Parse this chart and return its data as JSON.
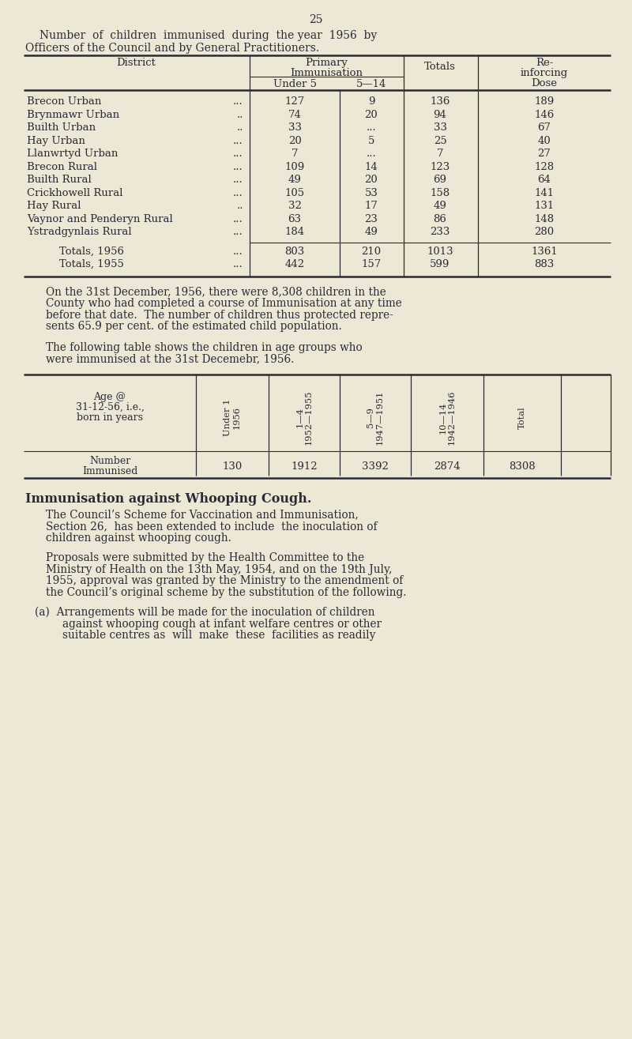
{
  "bg_color": "#ede8d5",
  "text_color": "#2a2a35",
  "page_number": "25",
  "table1": {
    "rows": [
      [
        "Brecon Urban",
        "...",
        "127",
        "9",
        "136",
        "189"
      ],
      [
        "Brynmawr Urban",
        "..",
        "74",
        "20",
        "94",
        "146"
      ],
      [
        "Builth Urban",
        "..",
        "33",
        "...",
        "33",
        "67"
      ],
      [
        "Hay Urban",
        "...",
        "20",
        "5",
        "25",
        "40"
      ],
      [
        "Llanwrtyd Urban",
        "...",
        "7",
        "...",
        "7",
        "27"
      ],
      [
        "Brecon Rural",
        "...",
        "109",
        "14",
        "123",
        "128"
      ],
      [
        "Builth Rural",
        "...",
        "49",
        "20",
        "69",
        "64"
      ],
      [
        "Crickhowell Rural",
        "...",
        "105",
        "53",
        "158",
        "141"
      ],
      [
        "Hay Rural",
        "..",
        "32",
        "17",
        "49",
        "131"
      ],
      [
        "Vaynor and Penderyn Rural",
        "...",
        "63",
        "23",
        "86",
        "148"
      ],
      [
        "Ystradgynlais Rural",
        "...",
        "184",
        "49",
        "233",
        "280"
      ]
    ],
    "totals_rows": [
      [
        "Totals, 1956",
        "...",
        "803",
        "210",
        "1013",
        "1361"
      ],
      [
        "Totals, 1955",
        "...",
        "442",
        "157",
        "599",
        "883"
      ]
    ]
  },
  "table2": {
    "col_labels_top": [
      "Under 1",
      "1—4",
      "5—9",
      "10—14",
      "Total"
    ],
    "col_labels_bot": [
      "1956",
      "1952—1955",
      "1947—1951",
      "1942—1946",
      ""
    ],
    "values": [
      "130",
      "1912",
      "3392",
      "2874",
      "8308"
    ]
  },
  "para1_lines": [
    "On the 31st December, 1956, there were 8,308 children in the",
    "County who had completed a course of Immunisation at any time",
    "before that date.  The number of children thus protected repre-",
    "sents 65.9 per cent. of the estimated child population."
  ],
  "para2_lines": [
    "The following table shows the children in age groups who",
    "were immunised at the 31st Decemebr, 1956."
  ],
  "para3_lines": [
    "The Council’s Scheme for Vaccination and Immunisation,",
    "Section 26,  has been extended to include  the inoculation of",
    "children against whooping cough."
  ],
  "para4_lines": [
    "Proposals were submitted by the Health Committee to the",
    "Ministry of Health on the 13th May, 1954, and on the 19th July,",
    "1955, approval was granted by the Ministry to the amendment of",
    "the Council’s original scheme by the substitution of the following."
  ],
  "para5_lines": [
    "(a)  Arrangements will be made for the inoculation of children",
    "        against whooping cough at infant welfare centres or other",
    "        suitable centres as  will  make  these  facilities as readily"
  ]
}
